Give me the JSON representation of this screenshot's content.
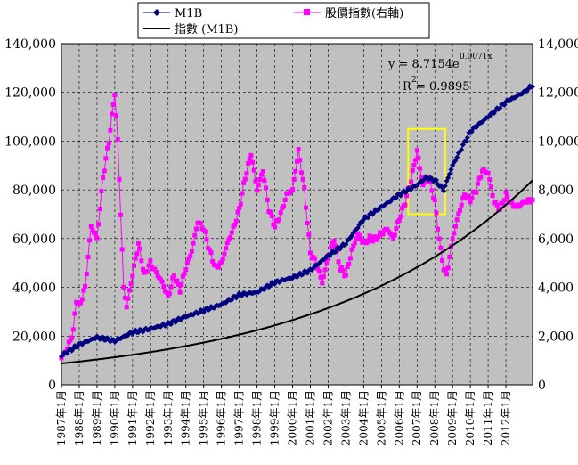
{
  "chart_data": {
    "type": "line",
    "title": "",
    "xlabel": "",
    "ylabel": "",
    "x_ticks": [
      "1987年1月",
      "1988年1月",
      "1989年1月",
      "1990年1月",
      "1991年1月",
      "1992年1月",
      "1993年1月",
      "1994年1月",
      "1995年1月",
      "1996年1月",
      "1997年1月",
      "1998年1月",
      "1999年1月",
      "2000年1月",
      "2001年1月",
      "2002年1月",
      "2003年1月",
      "2004年1月",
      "2005年1月",
      "2006年1月",
      "2007年1月",
      "2008年1月",
      "2009年1月",
      "2010年1月",
      "2011年1月",
      "2012年1月"
    ],
    "x_start_label": "1987年1月",
    "n_months": 319,
    "left_axis": {
      "ylim": [
        0,
        140000
      ],
      "ticks": [
        "0",
        "20,000",
        "40,000",
        "60,000",
        "80,000",
        "100,000",
        "120,000",
        "140,000"
      ]
    },
    "right_axis": {
      "ylim": [
        0,
        14000
      ],
      "ticks": [
        "0",
        "2,000",
        "4,000",
        "6,000",
        "8,000",
        "10,000",
        "12,000",
        "14,000"
      ]
    },
    "grid": true,
    "legend_position": "top",
    "series": [
      {
        "name": "M1B",
        "axis": "left",
        "color": "#000080",
        "marker": "diamond",
        "anchors": [
          [
            0,
            12000
          ],
          [
            12,
            16500
          ],
          [
            24,
            19500
          ],
          [
            36,
            18000
          ],
          [
            48,
            21500
          ],
          [
            60,
            23000
          ],
          [
            72,
            25000
          ],
          [
            84,
            28000
          ],
          [
            96,
            30500
          ],
          [
            108,
            33000
          ],
          [
            120,
            37000
          ],
          [
            132,
            38000
          ],
          [
            144,
            42000
          ],
          [
            156,
            44000
          ],
          [
            168,
            47000
          ],
          [
            180,
            53000
          ],
          [
            192,
            58000
          ],
          [
            204,
            68000
          ],
          [
            216,
            73000
          ],
          [
            228,
            78000
          ],
          [
            240,
            82000
          ],
          [
            246,
            85000
          ],
          [
            252,
            84000
          ],
          [
            258,
            80000
          ],
          [
            264,
            90000
          ],
          [
            276,
            104000
          ],
          [
            288,
            110000
          ],
          [
            300,
            116000
          ],
          [
            312,
            120000
          ],
          [
            318,
            123000
          ]
        ]
      },
      {
        "name": "股價指數(右軸)",
        "axis": "right",
        "color": "#ff00ff",
        "marker": "square",
        "anchors": [
          [
            0,
            1100
          ],
          [
            4,
            1500
          ],
          [
            8,
            2200
          ],
          [
            10,
            3500
          ],
          [
            12,
            3200
          ],
          [
            16,
            4000
          ],
          [
            20,
            6500
          ],
          [
            24,
            6000
          ],
          [
            28,
            8500
          ],
          [
            32,
            10000
          ],
          [
            36,
            12000
          ],
          [
            38,
            10000
          ],
          [
            42,
            4000
          ],
          [
            44,
            3200
          ],
          [
            48,
            4500
          ],
          [
            52,
            5800
          ],
          [
            56,
            4500
          ],
          [
            60,
            5000
          ],
          [
            64,
            4600
          ],
          [
            68,
            4200
          ],
          [
            72,
            3600
          ],
          [
            76,
            4500
          ],
          [
            80,
            3900
          ],
          [
            84,
            4800
          ],
          [
            88,
            5500
          ],
          [
            92,
            6700
          ],
          [
            96,
            6400
          ],
          [
            100,
            5500
          ],
          [
            104,
            4800
          ],
          [
            108,
            5000
          ],
          [
            112,
            5800
          ],
          [
            116,
            6400
          ],
          [
            120,
            7200
          ],
          [
            124,
            8500
          ],
          [
            128,
            9500
          ],
          [
            132,
            8000
          ],
          [
            136,
            8800
          ],
          [
            140,
            7200
          ],
          [
            144,
            6500
          ],
          [
            148,
            7000
          ],
          [
            152,
            7800
          ],
          [
            156,
            8000
          ],
          [
            160,
            9600
          ],
          [
            164,
            8000
          ],
          [
            168,
            5400
          ],
          [
            172,
            5000
          ],
          [
            176,
            4200
          ],
          [
            180,
            5200
          ],
          [
            184,
            6000
          ],
          [
            188,
            4800
          ],
          [
            192,
            4500
          ],
          [
            196,
            5500
          ],
          [
            200,
            6200
          ],
          [
            204,
            5800
          ],
          [
            208,
            6000
          ],
          [
            212,
            6000
          ],
          [
            216,
            6200
          ],
          [
            220,
            6400
          ],
          [
            224,
            6000
          ],
          [
            228,
            6800
          ],
          [
            232,
            7500
          ],
          [
            236,
            8400
          ],
          [
            240,
            9600
          ],
          [
            244,
            8200
          ],
          [
            248,
            8500
          ],
          [
            252,
            7500
          ],
          [
            256,
            5500
          ],
          [
            258,
            4800
          ],
          [
            260,
            4500
          ],
          [
            264,
            6000
          ],
          [
            268,
            7000
          ],
          [
            272,
            7800
          ],
          [
            276,
            7600
          ],
          [
            280,
            8000
          ],
          [
            284,
            8800
          ],
          [
            288,
            8700
          ],
          [
            292,
            7500
          ],
          [
            296,
            7200
          ],
          [
            300,
            7800
          ],
          [
            304,
            7400
          ],
          [
            308,
            7300
          ],
          [
            312,
            7500
          ],
          [
            318,
            7600
          ]
        ]
      },
      {
        "name": "指數 (M1B)",
        "axis": "left",
        "color": "#000000",
        "marker": "none",
        "fit": {
          "a": 8.7154,
          "b": 0.0071
        }
      }
    ],
    "annotations": {
      "equation_base": "y = 8.7154e",
      "equation_exp": "0.0071x",
      "r2_label": "R",
      "r2_sup": "2",
      "r2_value": " = 0.9895",
      "highlight_color": "#ffff00",
      "highlight_range": {
        "x": [
          234,
          259
        ],
        "y": [
          70000,
          105000
        ]
      }
    },
    "plot_background": "#c0c0c0"
  }
}
